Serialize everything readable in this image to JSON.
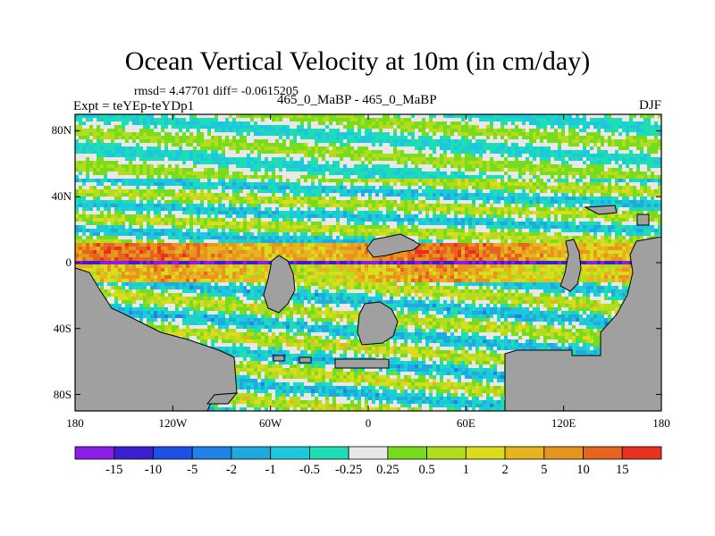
{
  "title": "Ocean Vertical Velocity at 10m (in cm/day)",
  "stats_line": "rmsd= 4.47701 diff= -0.0615205",
  "left_label": "Expt = teYEp-teYDp1",
  "center_label": "465_0_MaBP - 465_0_MaBP",
  "right_label": "DJF",
  "lat_ticks": [
    {
      "label": "80N",
      "lat": 80
    },
    {
      "label": "40N",
      "lat": 40
    },
    {
      "label": "0",
      "lat": 0
    },
    {
      "label": "40S",
      "lat": -40
    },
    {
      "label": "80S",
      "lat": -80
    }
  ],
  "lon_ticks": [
    {
      "label": "180",
      "lon": -180
    },
    {
      "label": "120W",
      "lon": -120
    },
    {
      "label": "60W",
      "lon": -60
    },
    {
      "label": "0",
      "lon": 0
    },
    {
      "label": "60E",
      "lon": 60
    },
    {
      "label": "120E",
      "lon": 120
    },
    {
      "label": "180",
      "lon": 180
    }
  ],
  "colorbar": {
    "labels": [
      "-15",
      "-10",
      "-5",
      "-2",
      "-1",
      "-0.5",
      "-0.25",
      "0.25",
      "0.5",
      "1",
      "2",
      "5",
      "10",
      "15"
    ],
    "colors": [
      "#8a1ee6",
      "#3c1ed2",
      "#1e50e6",
      "#1e82e6",
      "#1eaadc",
      "#1ec8dc",
      "#1edcb4",
      "#e8e8e8",
      "#78dc1e",
      "#b4dc1e",
      "#dcdc1e",
      "#e6b41e",
      "#e6961e",
      "#e6641e",
      "#e6321e"
    ]
  },
  "land_color": "#a0a0a0"
}
